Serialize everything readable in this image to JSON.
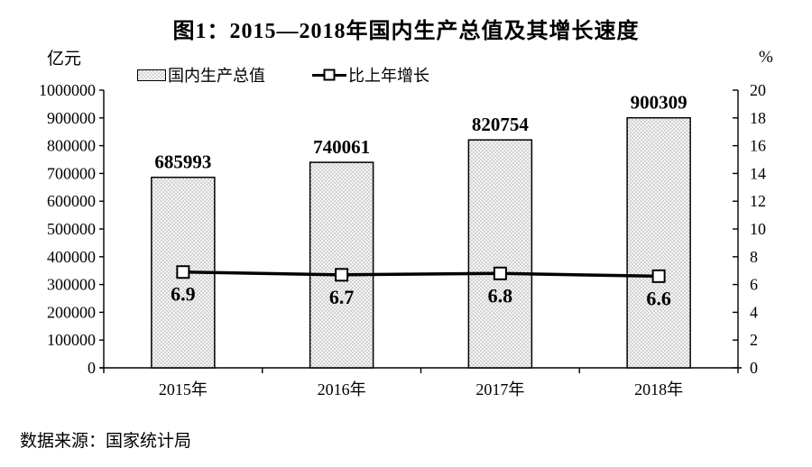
{
  "title": "图1：2015—2018年国内生产总值及其增长速度",
  "source": "数据来源：国家统计局",
  "colors": {
    "text": "#000000",
    "axis": "#000000",
    "bar_fill": "#f5f5f5",
    "bar_dot": "#8a8a8a",
    "bar_border": "#000000",
    "line": "#000000",
    "marker_fill": "#ffffff"
  },
  "chart_data": {
    "type": "combo",
    "categories": [
      "2015年",
      "2016年",
      "2017年",
      "2018年"
    ],
    "series": [
      {
        "name": "国内生产总值",
        "type": "bar",
        "axis": "left",
        "values": [
          685993,
          740061,
          820754,
          900309
        ],
        "labels": [
          "685993",
          "740061",
          "820754",
          "900309"
        ]
      },
      {
        "name": "比上年增长",
        "type": "line",
        "axis": "right",
        "values": [
          6.9,
          6.7,
          6.8,
          6.6
        ],
        "labels": [
          "6.9",
          "6.7",
          "6.8",
          "6.6"
        ]
      }
    ],
    "left_axis": {
      "unit": "亿元",
      "min": 0,
      "max": 1000000,
      "step": 100000
    },
    "right_axis": {
      "unit": "%",
      "min": 0,
      "max": 20,
      "step": 2
    },
    "legend_position": "top-center",
    "grid": false
  }
}
